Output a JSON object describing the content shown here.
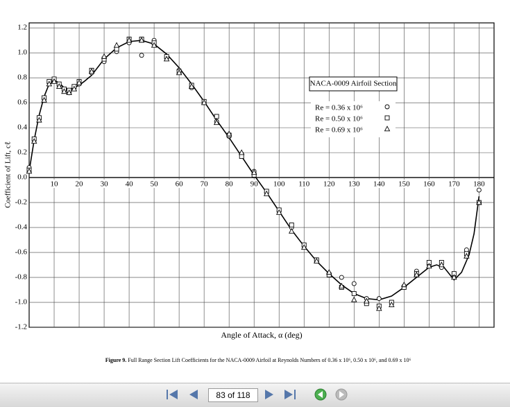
{
  "chart_data": {
    "type": "scatter",
    "legend_title": "NACA-0009 Airfoil Section",
    "x_label": "Angle of Attack, α (deg)",
    "y_label": "Coefficient of Lift, cℓ",
    "caption_label": "Figure 9.",
    "caption_text": "Full Range Section Lift Coefficients for the NACA-0009 Airfoil at Reynolds Numbers of 0.36 x 10⁶, 0.50 x 10⁶, and 0.69 x 10⁶",
    "xlim": [
      0,
      186
    ],
    "ylim": [
      -1.2,
      1.24
    ],
    "xticks": [
      10,
      20,
      30,
      40,
      50,
      60,
      70,
      80,
      90,
      100,
      110,
      120,
      130,
      140,
      150,
      160,
      170,
      180
    ],
    "yticks": [
      1.2,
      {
        "value": 1,
        "label": "1.0"
      },
      0.8,
      0.6,
      0.4,
      0.2,
      {
        "value": 0,
        "label": "0.0"
      },
      -0.2,
      -0.4,
      -0.6,
      -0.8,
      {
        "value": -1,
        "label": "-1.0"
      },
      -1.2
    ],
    "grid": true,
    "legend_position": "right",
    "series": [
      {
        "name": "Re = 0.36 x 10⁶",
        "marker": "circle",
        "color": "#000000",
        "x": [
          0,
          2,
          4,
          6,
          8,
          10,
          12,
          14,
          16,
          18,
          20,
          25,
          30,
          35,
          40,
          45,
          50,
          55,
          60,
          65,
          70,
          75,
          80,
          85,
          90,
          95,
          100,
          105,
          110,
          115,
          120,
          125,
          130,
          135,
          140,
          145,
          150,
          155,
          160,
          165,
          170,
          175,
          180
        ],
        "values": [
          0.08,
          0.3,
          0.47,
          0.63,
          0.76,
          0.78,
          0.74,
          0.7,
          0.68,
          0.72,
          0.75,
          0.84,
          0.93,
          1.01,
          1.08,
          0.98,
          1.1,
          0.96,
          0.86,
          0.72,
          0.6,
          0.45,
          0.33,
          0.19,
          0.05,
          -0.12,
          -0.27,
          -0.4,
          -0.55,
          -0.66,
          -0.77,
          -0.8,
          -0.85,
          -0.97,
          -0.97,
          -1.0,
          -0.87,
          -0.75,
          -0.7,
          -0.72,
          -0.8,
          -0.58,
          -0.1
        ]
      },
      {
        "name": "Re = 0.50 x 10⁶",
        "marker": "square",
        "color": "#000000",
        "x": [
          0,
          2,
          4,
          6,
          8,
          10,
          12,
          14,
          16,
          18,
          20,
          25,
          30,
          35,
          40,
          45,
          50,
          55,
          60,
          65,
          70,
          75,
          80,
          85,
          90,
          95,
          100,
          105,
          110,
          115,
          120,
          125,
          130,
          135,
          140,
          145,
          150,
          155,
          160,
          165,
          170,
          175,
          180
        ],
        "values": [
          0.06,
          0.31,
          0.48,
          0.64,
          0.77,
          0.79,
          0.75,
          0.71,
          0.7,
          0.73,
          0.77,
          0.86,
          0.95,
          1.03,
          1.11,
          1.11,
          1.08,
          0.97,
          0.85,
          0.74,
          0.61,
          0.49,
          0.34,
          0.17,
          0.02,
          -0.11,
          -0.26,
          -0.38,
          -0.54,
          -0.66,
          -0.78,
          -0.88,
          -0.93,
          -1.01,
          -1.03,
          -1.0,
          -0.88,
          -0.77,
          -0.68,
          -0.68,
          -0.77,
          -0.61,
          -0.2
        ]
      },
      {
        "name": "Re = 0.69 x 10⁶",
        "marker": "triangle",
        "color": "#000000",
        "x": [
          0,
          2,
          4,
          6,
          8,
          10,
          12,
          14,
          16,
          18,
          20,
          25,
          30,
          35,
          40,
          45,
          50,
          55,
          60,
          65,
          70,
          75,
          80,
          85,
          90,
          95,
          100,
          105,
          110,
          115,
          120,
          125,
          130,
          135,
          140,
          145,
          150,
          155,
          160,
          165,
          170,
          175,
          180
        ],
        "values": [
          0.05,
          0.29,
          0.46,
          0.62,
          0.75,
          0.77,
          0.73,
          0.69,
          0.68,
          0.71,
          0.76,
          0.85,
          0.97,
          1.06,
          1.1,
          1.1,
          1.06,
          0.95,
          0.84,
          0.73,
          0.6,
          0.44,
          0.35,
          0.2,
          0.04,
          -0.13,
          -0.28,
          -0.43,
          -0.56,
          -0.67,
          -0.76,
          -0.87,
          -0.98,
          -0.99,
          -1.05,
          -1.02,
          -0.86,
          -0.78,
          -0.71,
          -0.7,
          -0.8,
          -0.63,
          -0.2
        ]
      }
    ],
    "curve": {
      "color": "#000000",
      "x": [
        0,
        2,
        4,
        6,
        8,
        10,
        12,
        14,
        16,
        18,
        20,
        22,
        25,
        30,
        35,
        40,
        45,
        50,
        55,
        60,
        65,
        70,
        75,
        80,
        85,
        90,
        95,
        100,
        105,
        110,
        115,
        120,
        125,
        130,
        135,
        140,
        145,
        150,
        155,
        160,
        163,
        166,
        170,
        173,
        176,
        178,
        180
      ],
      "values": [
        0.05,
        0.3,
        0.5,
        0.65,
        0.75,
        0.78,
        0.76,
        0.72,
        0.7,
        0.72,
        0.74,
        0.77,
        0.82,
        0.95,
        1.04,
        1.09,
        1.1,
        1.07,
        0.99,
        0.88,
        0.75,
        0.61,
        0.46,
        0.32,
        0.17,
        0.02,
        -0.12,
        -0.27,
        -0.42,
        -0.55,
        -0.67,
        -0.77,
        -0.86,
        -0.93,
        -0.97,
        -0.98,
        -0.95,
        -0.88,
        -0.8,
        -0.72,
        -0.7,
        -0.72,
        -0.82,
        -0.76,
        -0.62,
        -0.45,
        -0.15
      ]
    }
  },
  "viewer": {
    "page_field": "83 of 118"
  }
}
